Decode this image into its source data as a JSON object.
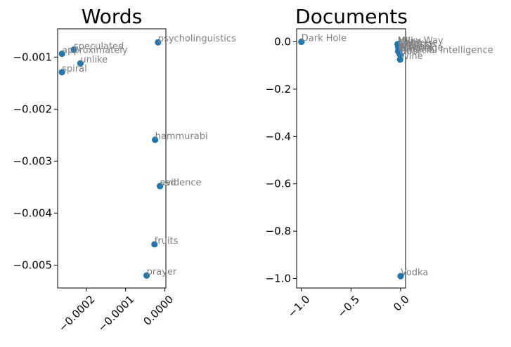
{
  "chart_data": [
    {
      "type": "scatter",
      "title": "Words",
      "xlabel": "",
      "ylabel": "",
      "xlim": [
        -0.000273,
        2.5e-06
      ],
      "ylim": [
        -0.00544,
        -0.000455
      ],
      "xticks": [
        -0.0002,
        -0.0001,
        0.0
      ],
      "xtick_labels": [
        "−0.0002",
        "−0.0001",
        "0.0000"
      ],
      "yticks": [
        -0.001,
        -0.002,
        -0.003,
        -0.004,
        -0.005
      ],
      "ytick_labels": [
        "−0.001",
        "−0.002",
        "−0.003",
        "−0.004",
        "−0.005"
      ],
      "marker_color": "#1f77b4",
      "grid": false,
      "points": [
        {
          "label": "psycholinguistics",
          "x": -1.75e-05,
          "y": -0.000715
        },
        {
          "label": "speculated",
          "x": -0.000232,
          "y": -0.000857
        },
        {
          "label": "approximately",
          "x": -0.000262,
          "y": -0.000935
        },
        {
          "label": "unlike",
          "x": -0.000215,
          "y": -0.00112
        },
        {
          "label": "spiral",
          "x": -0.000262,
          "y": -0.00129
        },
        {
          "label": "hammurabi",
          "x": -2.5e-05,
          "y": -0.00259
        },
        {
          "label": "evidence",
          "x": -1.25e-05,
          "y": -0.00348
        },
        {
          "label": "sad",
          "x": -1.25e-05,
          "y": -0.00348
        },
        {
          "label": "fruits",
          "x": -2.65e-05,
          "y": -0.0046
        },
        {
          "label": "prayer",
          "x": -4.65e-05,
          "y": -0.0052
        }
      ]
    },
    {
      "type": "scatter",
      "title": "Documents",
      "xlabel": "",
      "ylabel": "",
      "xlim": [
        -1.048,
        0.05
      ],
      "ylim": [
        -1.04,
        0.055
      ],
      "xticks": [
        -1.0,
        -0.5,
        0.0
      ],
      "xtick_labels": [
        "−1.0",
        "−0.5",
        "0.0"
      ],
      "yticks": [
        0.0,
        -0.2,
        -0.4,
        -0.6,
        -0.8,
        -1.0
      ],
      "ytick_labels": [
        "0.0",
        "−0.2",
        "−0.4",
        "−0.6",
        "−0.8",
        "−1.0"
      ],
      "marker_color": "#1f77b4",
      "grid": false,
      "points": [
        {
          "label": "Dark Hole",
          "x": -1.0,
          "y": 0.0
        },
        {
          "label": "Milky Way",
          "x": -0.03,
          "y": -0.01
        },
        {
          "label": "Wine",
          "x": -0.02,
          "y": -0.015
        },
        {
          "label": "Objects",
          "x": -0.025,
          "y": -0.02
        },
        {
          "label": "Writings",
          "x": -0.015,
          "y": -0.025
        },
        {
          "label": "Life",
          "x": -0.02,
          "y": -0.03
        },
        {
          "label": "Alcohol",
          "x": -0.01,
          "y": -0.035
        },
        {
          "label": "Language",
          "x": -0.025,
          "y": -0.04
        },
        {
          "label": "Planets",
          "x": -0.015,
          "y": -0.045
        },
        {
          "label": "Artificial Intelligence",
          "x": -0.01,
          "y": -0.05
        },
        {
          "label": "Beer",
          "x": -0.005,
          "y": -0.055
        },
        {
          "label": "Wine",
          "x": -0.005,
          "y": -0.075
        },
        {
          "label": "Vodka",
          "x": 0.0,
          "y": -0.99
        }
      ]
    }
  ]
}
